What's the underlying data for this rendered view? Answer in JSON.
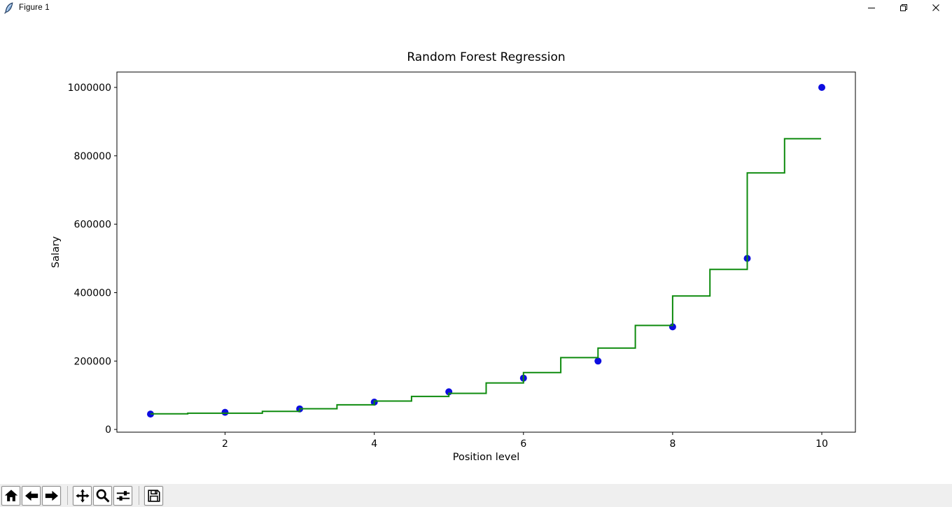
{
  "window": {
    "title": "Figure 1",
    "controls": {
      "minimize_icon": "minimize-icon",
      "restore_icon": "restore-icon",
      "close_icon": "close-icon"
    },
    "app_icon": "tk-feather-icon"
  },
  "chart_data": {
    "type": "scatter",
    "title": "Random Forest Regression",
    "xlabel": "Position level",
    "ylabel": "Salary",
    "xlim": [
      0.55,
      10.45
    ],
    "ylim": [
      -8000,
      1045000
    ],
    "x_ticks": [
      2,
      4,
      6,
      8,
      10
    ],
    "x_tick_labels": [
      "2",
      "4",
      "6",
      "8",
      "10"
    ],
    "y_ticks": [
      0,
      200000,
      400000,
      600000,
      800000,
      1000000
    ],
    "y_tick_labels": [
      "0",
      "200000",
      "400000",
      "600000",
      "800000",
      "1000000"
    ],
    "grid": false,
    "legend": "none",
    "scatter": {
      "name": "actual-salary-points",
      "color": "#0d0de0",
      "marker_radius": 5,
      "x": [
        1,
        2,
        3,
        4,
        5,
        6,
        7,
        8,
        9,
        10
      ],
      "y": [
        45000,
        50000,
        60000,
        80000,
        110000,
        150000,
        200000,
        300000,
        500000,
        1000000
      ]
    },
    "regression_line": {
      "name": "random-forest-prediction-step-line",
      "color": "#0e8b0e",
      "width": 2,
      "steps": [
        [
          1.0,
          1.5,
          45500
        ],
        [
          1.5,
          2.5,
          47500
        ],
        [
          2.5,
          3.0,
          53000
        ],
        [
          3.0,
          3.5,
          60500
        ],
        [
          3.5,
          4.0,
          72000
        ],
        [
          4.0,
          4.5,
          83000
        ],
        [
          4.5,
          5.0,
          96500
        ],
        [
          5.0,
          5.5,
          105500
        ],
        [
          5.5,
          6.0,
          136000
        ],
        [
          6.0,
          6.5,
          166500
        ],
        [
          6.5,
          7.0,
          210000
        ],
        [
          7.0,
          7.5,
          238000
        ],
        [
          7.5,
          8.0,
          304000
        ],
        [
          8.0,
          8.5,
          390000
        ],
        [
          8.5,
          9.0,
          468000
        ],
        [
          9.0,
          9.5,
          750000
        ],
        [
          9.5,
          9.99,
          850000
        ]
      ]
    }
  },
  "toolbar": {
    "buttons": [
      {
        "id": "home",
        "icon": "home-icon"
      },
      {
        "id": "back",
        "icon": "back-arrow-icon"
      },
      {
        "id": "forward",
        "icon": "forward-arrow-icon"
      },
      {
        "id": "pan",
        "icon": "pan-move-icon"
      },
      {
        "id": "zoom",
        "icon": "zoom-magnifier-icon"
      },
      {
        "id": "subplots",
        "icon": "subplots-sliders-icon"
      },
      {
        "id": "save",
        "icon": "save-floppy-icon"
      }
    ]
  }
}
